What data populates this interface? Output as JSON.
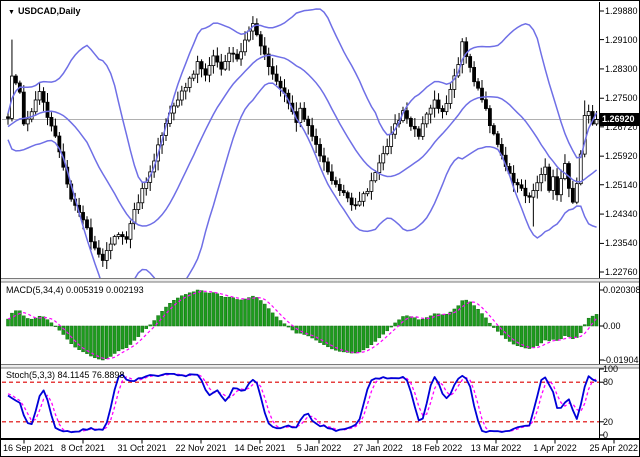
{
  "window": {
    "title": "USDCAD,Daily"
  },
  "panes": {
    "price": {
      "title": "USDCAD,Daily",
      "axis_labels": [
        "1.29880",
        "1.29100",
        "1.28300",
        "1.27500",
        "1.26720",
        "1.25920",
        "1.25140",
        "1.24340",
        "1.23540",
        "1.22760"
      ],
      "current_price": "1.26920"
    },
    "macd": {
      "label": "MACD(5,34,4) 0.005319 0.002193",
      "axis_labels": [
        "0.020308",
        "0.00",
        "-0.01904"
      ]
    },
    "stoch": {
      "label": "Stoch(5,3,3) 84.1145 76.8898",
      "axis_labels": [
        "100",
        "80",
        "20",
        "0"
      ],
      "axis_values": [
        100,
        80,
        20,
        0
      ],
      "levels": [
        80,
        20
      ]
    }
  },
  "date_axis": {
    "labels": [
      "16 Sep 2021",
      "8 Oct 2021",
      "31 Oct 2021",
      "22 Nov 2021",
      "14 Dec 2021",
      "5 Jan 2022",
      "27 Jan 2022",
      "18 Feb 2022",
      "13 Mar 2022",
      "1 Apr 2022",
      "25 Apr 2022"
    ]
  },
  "icons": {
    "dropdown": "▼"
  },
  "colors": {
    "bollinger": "#6f6fe6",
    "candle_up_fill": "#ffffff",
    "candle_down_fill": "#000000",
    "candle_stroke": "#000000",
    "macd_bar": "#1e9b1e",
    "macd_bar_edge": "#0f6f0f",
    "signal_line": "#ff00ff",
    "stoch_k": "#0000d8",
    "stoch_d": "#ff00ff",
    "level_line": "#dd0000",
    "current_price_line": "#b0b0b0",
    "tag_bg": "#000000",
    "tag_text": "#ffffff"
  },
  "chart_data": {
    "type": "candlestick",
    "symbol": "USDCAD",
    "timeframe": "Daily",
    "bars": 150,
    "price_axis_range": [
      1.2276,
      1.2988
    ],
    "last_close": 1.2692,
    "close_waypoints": [
      [
        0,
        1.27
      ],
      [
        1,
        1.281
      ],
      [
        3,
        1.2765
      ],
      [
        4,
        1.268
      ],
      [
        6,
        1.272
      ],
      [
        8,
        1.2775
      ],
      [
        10,
        1.27
      ],
      [
        12,
        1.264
      ],
      [
        14,
        1.256
      ],
      [
        16,
        1.248
      ],
      [
        18,
        1.2435
      ],
      [
        20,
        1.239
      ],
      [
        22,
        1.234
      ],
      [
        24,
        1.231
      ],
      [
        26,
        1.235
      ],
      [
        28,
        1.2385
      ],
      [
        30,
        1.2365
      ],
      [
        32,
        1.244
      ],
      [
        34,
        1.25
      ],
      [
        36,
        1.255
      ],
      [
        38,
        1.262
      ],
      [
        40,
        1.268
      ],
      [
        42,
        1.273
      ],
      [
        44,
        1.277
      ],
      [
        46,
        1.28
      ],
      [
        48,
        1.2845
      ],
      [
        50,
        1.282
      ],
      [
        52,
        1.286
      ],
      [
        54,
        1.283
      ],
      [
        56,
        1.2875
      ],
      [
        58,
        1.2855
      ],
      [
        60,
        1.2905
      ],
      [
        62,
        1.295
      ],
      [
        64,
        1.289
      ],
      [
        66,
        1.284
      ],
      [
        68,
        1.28
      ],
      [
        70,
        1.276
      ],
      [
        72,
        1.272
      ],
      [
        73,
        1.268
      ],
      [
        74,
        1.2725
      ],
      [
        76,
        1.267
      ],
      [
        78,
        1.262
      ],
      [
        80,
        1.2575
      ],
      [
        82,
        1.253
      ],
      [
        84,
        1.2505
      ],
      [
        86,
        1.2475
      ],
      [
        88,
        1.2455
      ],
      [
        90,
        1.2485
      ],
      [
        92,
        1.252
      ],
      [
        94,
        1.257
      ],
      [
        96,
        1.262
      ],
      [
        98,
        1.268
      ],
      [
        100,
        1.271
      ],
      [
        102,
        1.268
      ],
      [
        104,
        1.265
      ],
      [
        106,
        1.27
      ],
      [
        108,
        1.274
      ],
      [
        110,
        1.271
      ],
      [
        112,
        1.277
      ],
      [
        114,
        1.284
      ],
      [
        115,
        1.29
      ],
      [
        116,
        1.287
      ],
      [
        118,
        1.28
      ],
      [
        120,
        1.275
      ],
      [
        122,
        1.268
      ],
      [
        124,
        1.262
      ],
      [
        126,
        1.257
      ],
      [
        128,
        1.252
      ],
      [
        130,
        1.25
      ],
      [
        132,
        1.248
      ],
      [
        134,
        1.252
      ],
      [
        136,
        1.256
      ],
      [
        137,
        1.25
      ],
      [
        138,
        1.254
      ],
      [
        139,
        1.249
      ],
      [
        140,
        1.253
      ],
      [
        141,
        1.257
      ],
      [
        142,
        1.251
      ],
      [
        143,
        1.246
      ],
      [
        144,
        1.252
      ],
      [
        145,
        1.26
      ],
      [
        146,
        1.27
      ],
      [
        147,
        1.272
      ],
      [
        148,
        1.268
      ],
      [
        149,
        1.2692
      ]
    ],
    "wick_spikes": {
      "1": {
        "high": 1.291
      },
      "24": {
        "low": 1.229
      },
      "62": {
        "high": 1.2965
      },
      "115": {
        "high": 1.2906
      },
      "133": {
        "low": 1.24
      },
      "146": {
        "high": 1.2744
      }
    },
    "indicators": [
      {
        "type": "bollinger",
        "period": 20,
        "deviation": 2
      },
      {
        "type": "macd",
        "fast": 5,
        "slow": 34,
        "signal": 4,
        "current": [
          0.005319,
          0.002193
        ],
        "axis_range": [
          -0.01904,
          0.020308
        ]
      },
      {
        "type": "stochastic",
        "k": 5,
        "d": 3,
        "slowing": 3,
        "current": [
          84.1145,
          76.8898
        ],
        "levels": [
          80,
          20
        ],
        "axis_range": [
          0,
          100
        ]
      }
    ]
  }
}
